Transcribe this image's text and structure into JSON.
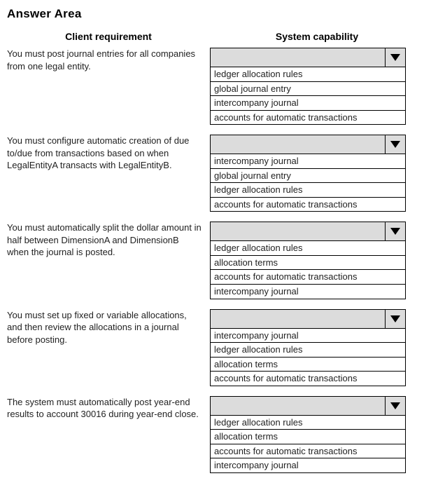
{
  "title": "Answer Area",
  "headers": {
    "left": "Client requirement",
    "right": "System capability"
  },
  "rows": [
    {
      "requirement": "You must post journal entries for all companies from one legal entity.",
      "options": [
        "ledger allocation rules",
        "global journal entry",
        "intercompany journal",
        "accounts for automatic transactions"
      ]
    },
    {
      "requirement": "You must configure automatic creation of due to/due from transactions based on when LegalEntityA transacts with LegalEntityB.",
      "options": [
        "intercompany journal",
        "global journal entry",
        "ledger allocation rules",
        "accounts for automatic transactions"
      ]
    },
    {
      "requirement": "You must automatically split the dollar amount in half between DimensionA and DimensionB when the journal is posted.",
      "options": [
        "ledger allocation rules",
        "allocation terms",
        "accounts for automatic transactions",
        "intercompany journal"
      ]
    },
    {
      "requirement": "You must set up fixed or variable allocations, and then review the allocations in a journal before posting.",
      "options": [
        "intercompany journal",
        "ledger allocation rules",
        "allocation terms",
        "accounts for automatic transactions"
      ]
    },
    {
      "requirement": "The system must automatically post year-end results to account 30016 during year-end close.",
      "options": [
        "ledger allocation rules",
        "allocation terms",
        "accounts for automatic transactions",
        "intercompany journal"
      ]
    }
  ],
  "colors": {
    "dropdown_header_bg": "#dcdcdc",
    "border": "#000000",
    "text": "#222222",
    "background": "#ffffff"
  }
}
